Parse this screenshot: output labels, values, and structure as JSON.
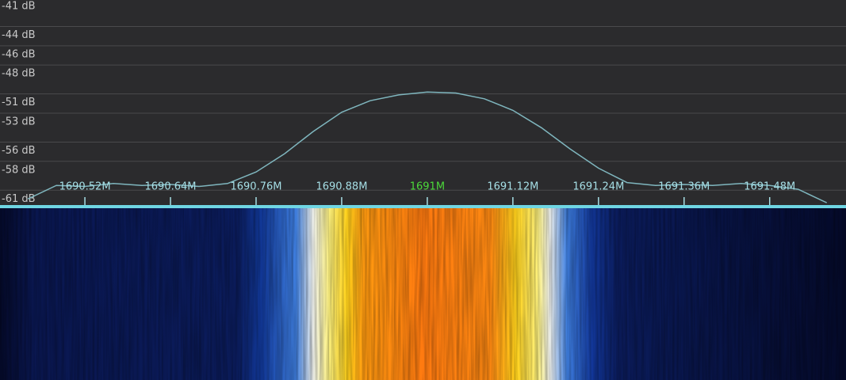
{
  "chart_data": {
    "type": "line",
    "x": [
      1690.44,
      1690.48,
      1690.52,
      1690.56,
      1690.6,
      1690.64,
      1690.68,
      1690.72,
      1690.76,
      1690.8,
      1690.84,
      1690.88,
      1690.92,
      1690.96,
      1691,
      1691.04,
      1691.08,
      1691.12,
      1691.16,
      1691.2,
      1691.24,
      1691.28,
      1691.32,
      1691.36,
      1691.4,
      1691.44,
      1691.48,
      1691.52,
      1691.56
    ],
    "values": [
      -61.0,
      -59.6,
      -59.7,
      -59.4,
      -59.6,
      -59.5,
      -59.7,
      -59.4,
      -58.2,
      -56.3,
      -54.0,
      -52.0,
      -50.8,
      -50.2,
      -49.9,
      -50.0,
      -50.6,
      -51.8,
      -53.6,
      -55.8,
      -57.8,
      -59.3,
      -59.6,
      -59.5,
      -59.6,
      -59.4,
      -59.6,
      -60.0,
      -61.4
    ],
    "color": "#7fb6be",
    "xlim": [
      1690.401,
      1691.587
    ],
    "ylim": [
      -61.8,
      -40.34
    ],
    "xticks": [
      {
        "value": 1690.52,
        "label": "1690.52M"
      },
      {
        "value": 1690.64,
        "label": "1690.64M"
      },
      {
        "value": 1690.76,
        "label": "1690.76M"
      },
      {
        "value": 1690.88,
        "label": "1690.88M"
      },
      {
        "value": 1691,
        "label": "1691M"
      },
      {
        "value": 1691.12,
        "label": "1691.12M"
      },
      {
        "value": 1691.24,
        "label": "1691.24M"
      },
      {
        "value": 1691.36,
        "label": "1691.36M"
      },
      {
        "value": 1691.48,
        "label": "1691.48M"
      }
    ],
    "yticks": [
      {
        "value": -41,
        "label": "-41 dB"
      },
      {
        "value": -44,
        "label": "-44 dB"
      },
      {
        "value": -46,
        "label": "-46 dB"
      },
      {
        "value": -48,
        "label": "-48 dB"
      },
      {
        "value": -51,
        "label": "-51 dB"
      },
      {
        "value": -53,
        "label": "-53 dB"
      },
      {
        "value": -56,
        "label": "-56 dB"
      },
      {
        "value": -58,
        "label": "-58 dB"
      },
      {
        "value": -61,
        "label": "-61 dB"
      }
    ],
    "grid": true,
    "xtick_color": "#a6dfe6",
    "center_color": "#4cd93a"
  }
}
